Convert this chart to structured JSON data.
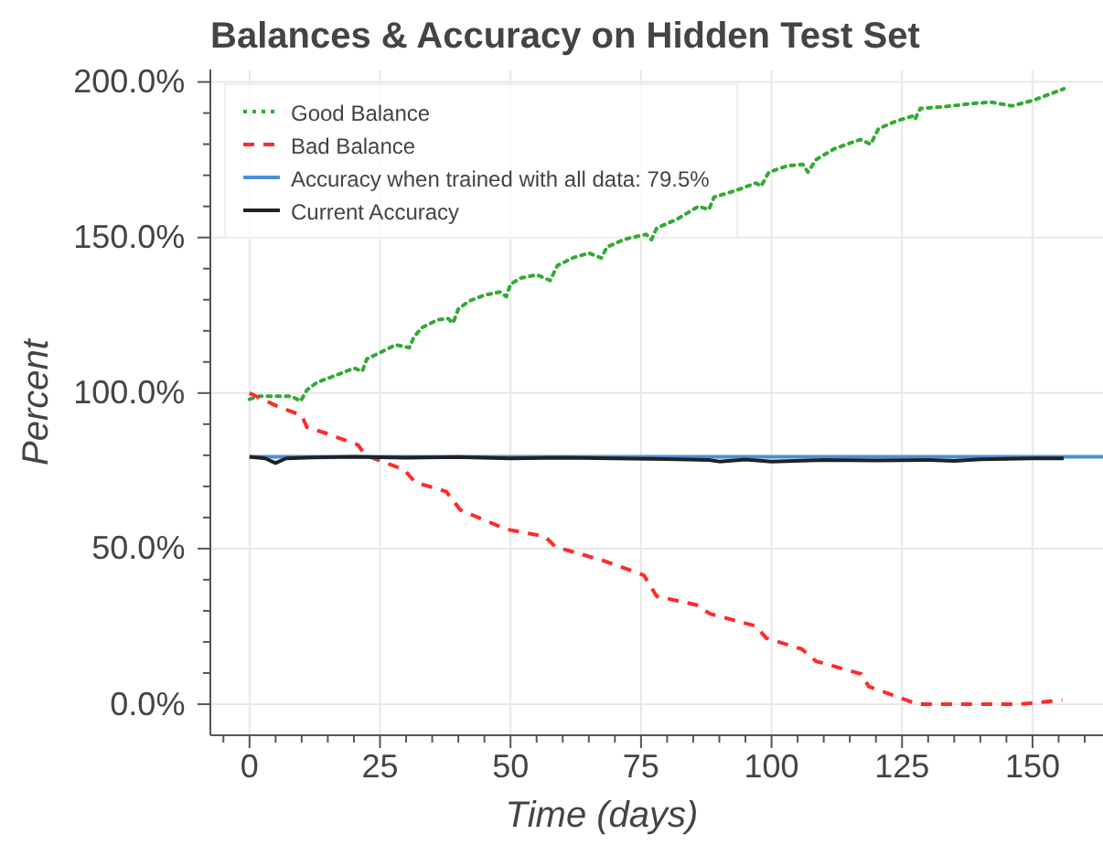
{
  "chart_data": {
    "type": "line",
    "title": "Balances & Accuracy on Hidden Test Set",
    "xlabel": "Time (days)",
    "ylabel": "Percent",
    "xlim": [
      -7.5,
      163.5
    ],
    "ylim": [
      -10,
      204
    ],
    "xticks": [
      {
        "value": -5,
        "label": null
      },
      0,
      {
        "value": 5,
        "label": null
      },
      {
        "value": 10,
        "label": null
      },
      {
        "value": 15,
        "label": null
      },
      {
        "value": 20,
        "label": null
      },
      25,
      {
        "value": 30,
        "label": null
      },
      {
        "value": 35,
        "label": null
      },
      {
        "value": 40,
        "label": null
      },
      {
        "value": 45,
        "label": null
      },
      50,
      {
        "value": 55,
        "label": null
      },
      {
        "value": 60,
        "label": null
      },
      {
        "value": 65,
        "label": null
      },
      {
        "value": 70,
        "label": null
      },
      75,
      {
        "value": 80,
        "label": null
      },
      {
        "value": 85,
        "label": null
      },
      {
        "value": 90,
        "label": null
      },
      {
        "value": 95,
        "label": null
      },
      100,
      {
        "value": 105,
        "label": null
      },
      {
        "value": 110,
        "label": null
      },
      {
        "value": 115,
        "label": null
      },
      {
        "value": 120,
        "label": null
      },
      125,
      {
        "value": 130,
        "label": null
      },
      {
        "value": 135,
        "label": null
      },
      {
        "value": 140,
        "label": null
      },
      {
        "value": 145,
        "label": null
      },
      150,
      {
        "value": 155,
        "label": null
      },
      {
        "value": 160,
        "label": null
      }
    ],
    "yticks": [
      {
        "value": 0,
        "label": "0.0%"
      },
      {
        "value": 10,
        "label": null
      },
      {
        "value": 20,
        "label": null
      },
      {
        "value": 30,
        "label": null
      },
      {
        "value": 40,
        "label": null
      },
      {
        "value": 50,
        "label": "50.0%"
      },
      {
        "value": 60,
        "label": null
      },
      {
        "value": 70,
        "label": null
      },
      {
        "value": 80,
        "label": null
      },
      {
        "value": 90,
        "label": null
      },
      {
        "value": 100,
        "label": "100.0%"
      },
      {
        "value": 110,
        "label": null
      },
      {
        "value": 120,
        "label": null
      },
      {
        "value": 130,
        "label": null
      },
      {
        "value": 140,
        "label": null
      },
      {
        "value": 150,
        "label": "150.0%"
      },
      {
        "value": 160,
        "label": null
      },
      {
        "value": 170,
        "label": null
      },
      {
        "value": 180,
        "label": null
      },
      {
        "value": 190,
        "label": null
      },
      {
        "value": 200,
        "label": "200.0%"
      }
    ],
    "grid": true,
    "legend": "top left",
    "series": [
      {
        "name": "Good Balance",
        "color": "#33aa33",
        "line_style": "dotted",
        "x": [
          0,
          2,
          8,
          9.8,
          11,
          13,
          17,
          20,
          21.6,
          22.5,
          25,
          28,
          30.6,
          31.5,
          33,
          36,
          38,
          39,
          40,
          42,
          45,
          48,
          49.2,
          50,
          52,
          55,
          57.6,
          59,
          62,
          65,
          67.4,
          68.5,
          72,
          76,
          77,
          78,
          82,
          86,
          88,
          89,
          93,
          97,
          98,
          99.5,
          103,
          106,
          107,
          108.5,
          112,
          117,
          119,
          120.5,
          124,
          127,
          127.5,
          128.5,
          133,
          138,
          142,
          146,
          150,
          156
        ],
        "values": [
          98,
          99,
          99,
          97.4,
          101,
          103.5,
          106,
          108,
          107,
          111,
          113,
          115.5,
          114.6,
          118,
          121,
          123.5,
          124,
          122.5,
          127,
          129.5,
          131.5,
          132.5,
          131,
          135,
          137,
          138,
          136.2,
          141,
          143.5,
          145,
          143.4,
          147,
          149.5,
          151,
          149.3,
          153,
          156,
          160,
          159,
          163,
          165,
          167.5,
          166.5,
          171,
          173,
          173.5,
          171,
          175,
          178.5,
          181.5,
          180,
          185,
          187.5,
          189,
          188,
          191.5,
          192,
          193,
          193.5,
          192.3,
          194,
          197.8
        ]
      },
      {
        "name": "Bad Balance",
        "color": "#ff2a2a",
        "line_style": "dashed",
        "x": [
          0,
          5,
          10,
          11,
          14.8,
          20.8,
          22.2,
          29.6,
          31.7,
          37.7,
          40.4,
          49.2,
          56.6,
          58.6,
          68,
          75.5,
          78,
          85.6,
          88.3,
          97,
          99,
          105.8,
          108.5,
          117.2,
          118.6,
          128,
          147.6,
          155.7
        ],
        "values": [
          100,
          96,
          92.8,
          89,
          87,
          83.3,
          80,
          75.4,
          71.4,
          68.3,
          62.4,
          56.2,
          53.9,
          50.6,
          46,
          41.5,
          34.7,
          31.9,
          29,
          25.1,
          21.2,
          17.7,
          13.8,
          9.7,
          5.7,
          0,
          0,
          1.3
        ]
      },
      {
        "name": "Accuracy when trained with all data: 79.5%",
        "color": "#4a90d9",
        "line_style": "solid",
        "x": [
          0,
          163.5
        ],
        "values": [
          79.5,
          79.5
        ]
      },
      {
        "name": "Current Accuracy",
        "color": "#222222",
        "line_style": "solid",
        "x": [
          0,
          3,
          5,
          7,
          12,
          20,
          30,
          40,
          50,
          60,
          70,
          80,
          88,
          90,
          95,
          100,
          110,
          120,
          130,
          135,
          140,
          150,
          156
        ],
        "values": [
          79.5,
          79,
          77.5,
          79,
          79.3,
          79.5,
          79.2,
          79.4,
          79,
          79.2,
          79,
          78.8,
          78.5,
          78,
          78.6,
          78,
          78.5,
          78.3,
          78.5,
          78.2,
          78.7,
          79,
          79
        ]
      }
    ]
  }
}
